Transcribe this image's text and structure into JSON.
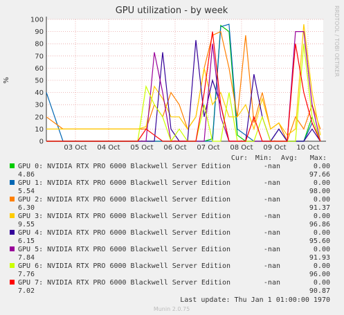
{
  "chart_data": {
    "type": "line",
    "title": "GPU utilization - by week",
    "y_label": "%",
    "side_text": "RRDTOOL / TOBI OETIKER",
    "footer": "Last update: Thu Jan  1 01:00:00 1970",
    "version": "Munin 2.0.75",
    "legend_headers": [
      "Cur:",
      "Min:",
      "Avg:",
      "Max:"
    ],
    "grid": true,
    "xlim": [
      2.125,
      10.46
    ],
    "ylim": [
      0,
      100
    ],
    "yticks": [
      0,
      10,
      20,
      30,
      40,
      50,
      60,
      70,
      80,
      90,
      100
    ],
    "xticks": [
      {
        "value": 3,
        "label": "03 Oct"
      },
      {
        "value": 4,
        "label": "04 Oct"
      },
      {
        "value": 5,
        "label": "05 Oct"
      },
      {
        "value": 6,
        "label": "06 Oct"
      },
      {
        "value": 7,
        "label": "07 Oct"
      },
      {
        "value": 8,
        "label": "08 Oct"
      },
      {
        "value": 9,
        "label": "09 Oct"
      },
      {
        "value": 10,
        "label": "10 Oct"
      }
    ],
    "x": [
      2.125,
      2.375,
      2.625,
      2.875,
      3.125,
      3.375,
      3.625,
      3.875,
      4.125,
      4.375,
      4.625,
      4.875,
      5.125,
      5.375,
      5.625,
      5.875,
      6.125,
      6.375,
      6.625,
      6.875,
      7.125,
      7.375,
      7.625,
      7.875,
      8.125,
      8.375,
      8.625,
      8.875,
      9.125,
      9.375,
      9.625,
      9.875,
      10.125,
      10.375
    ],
    "series": [
      {
        "name": "GPU 0: NVIDIA RTX PRO 6000 Blackwell Server Edition",
        "color": "#00cc00",
        "cur": "-nan",
        "min": "0.00",
        "avg": "4.86",
        "max": "97.66",
        "values": [
          0,
          0,
          0,
          0,
          0,
          0,
          0,
          0,
          0,
          0,
          0,
          0,
          0,
          0,
          0,
          0,
          0,
          0,
          0,
          0,
          2,
          95,
          90,
          5,
          0,
          0,
          0,
          0,
          0,
          0,
          0,
          0,
          20,
          0
        ]
      },
      {
        "name": "GPU 1: NVIDIA RTX PRO 6000 Blackwell Server Edition",
        "color": "#0066b3",
        "cur": "-nan",
        "min": "0.00",
        "avg": "5.54",
        "max": "98.00",
        "values": [
          40,
          20,
          0,
          0,
          0,
          0,
          0,
          0,
          0,
          0,
          0,
          0,
          0,
          0,
          0,
          0,
          0,
          0,
          0,
          0,
          0,
          94,
          96,
          10,
          5,
          0,
          0,
          0,
          10,
          0,
          0,
          0,
          15,
          0
        ]
      },
      {
        "name": "GPU 2: NVIDIA RTX PRO 6000 Blackwell Server Edition",
        "color": "#ff8000",
        "cur": "-nan",
        "min": "0.00",
        "avg": "6.30",
        "max": "91.37",
        "values": [
          20,
          15,
          10,
          10,
          10,
          10,
          10,
          10,
          10,
          10,
          10,
          10,
          10,
          30,
          20,
          40,
          30,
          10,
          20,
          60,
          87,
          90,
          60,
          20,
          87,
          15,
          40,
          10,
          15,
          0,
          20,
          10,
          30,
          10
        ]
      },
      {
        "name": "GPU 3: NVIDIA RTX PRO 6000 Blackwell Server Edition",
        "color": "#ffcc00",
        "cur": "-nan",
        "min": "0.00",
        "avg": "9.55",
        "max": "96.86",
        "values": [
          10,
          10,
          10,
          10,
          10,
          10,
          10,
          10,
          10,
          10,
          10,
          10,
          12,
          45,
          35,
          20,
          20,
          10,
          20,
          60,
          30,
          40,
          20,
          20,
          30,
          10,
          35,
          10,
          15,
          5,
          10,
          96,
          40,
          5
        ]
      },
      {
        "name": "GPU 4: NVIDIA RTX PRO 6000 Blackwell Server Edition",
        "color": "#330099",
        "cur": "-nan",
        "min": "0.00",
        "avg": "6.15",
        "max": "95.60",
        "values": [
          0,
          0,
          0,
          0,
          0,
          0,
          0,
          0,
          0,
          0,
          0,
          0,
          0,
          0,
          73,
          10,
          0,
          0,
          83,
          20,
          50,
          30,
          0,
          0,
          0,
          55,
          20,
          0,
          10,
          0,
          0,
          0,
          10,
          0
        ]
      },
      {
        "name": "GPU 5: NVIDIA RTX PRO 6000 Blackwell Server Edition",
        "color": "#990099",
        "cur": "-nan",
        "min": "0.00",
        "avg": "7.84",
        "max": "91.93",
        "values": [
          0,
          0,
          0,
          0,
          0,
          0,
          0,
          0,
          0,
          0,
          0,
          0,
          0,
          73,
          40,
          0,
          0,
          0,
          0,
          0,
          80,
          20,
          0,
          0,
          0,
          0,
          0,
          0,
          0,
          0,
          90,
          90,
          30,
          0
        ]
      },
      {
        "name": "GPU 6: NVIDIA RTX PRO 6000 Blackwell Server Edition",
        "color": "#ccff00",
        "cur": "-nan",
        "min": "0.00",
        "avg": "7.76",
        "max": "96.00",
        "values": [
          0,
          0,
          0,
          0,
          0,
          0,
          0,
          0,
          0,
          0,
          0,
          0,
          45,
          30,
          20,
          0,
          10,
          0,
          0,
          30,
          0,
          0,
          40,
          0,
          0,
          0,
          20,
          0,
          0,
          0,
          0,
          80,
          20,
          0
        ]
      },
      {
        "name": "GPU 7: NVIDIA RTX PRO 6000 Blackwell Server Edition",
        "color": "#ff0000",
        "cur": "-nan",
        "min": "0.00",
        "avg": "7.02",
        "max": "90.87",
        "values": [
          0,
          0,
          0,
          0,
          0,
          0,
          0,
          0,
          0,
          0,
          0,
          0,
          10,
          5,
          0,
          0,
          0,
          0,
          0,
          40,
          90,
          30,
          0,
          0,
          0,
          20,
          0,
          0,
          0,
          0,
          80,
          40,
          15,
          0
        ]
      }
    ]
  }
}
